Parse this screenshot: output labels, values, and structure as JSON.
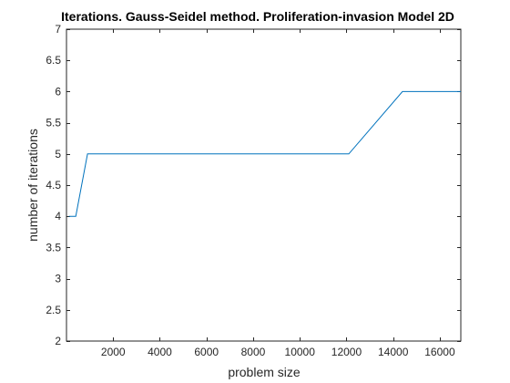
{
  "colors": {
    "series": "#0072BD",
    "axis": "#262626",
    "background": "#ffffff"
  },
  "chart_data": {
    "type": "line",
    "title": "Iterations. Gauss-Seidel method. Proliferation-invasion Model 2D",
    "xlabel": "problem size",
    "ylabel": "number of iterations",
    "xlim": [
      0,
      16900
    ],
    "ylim": [
      2,
      7
    ],
    "xticks": [
      2000,
      4000,
      6000,
      8000,
      10000,
      12000,
      14000,
      16000
    ],
    "yticks": [
      2,
      2.5,
      3,
      3.5,
      4,
      4.5,
      5,
      5.5,
      6,
      6.5,
      7
    ],
    "grid": false,
    "legend": "none",
    "series": [
      {
        "x": [
          100,
          400,
          900,
          1600,
          2500,
          3600,
          4900,
          6400,
          8100,
          10000,
          12100,
          14400,
          16900
        ],
        "y": [
          4,
          4,
          5,
          5,
          5,
          5,
          5,
          5,
          5,
          5,
          5,
          6,
          6
        ]
      }
    ]
  }
}
